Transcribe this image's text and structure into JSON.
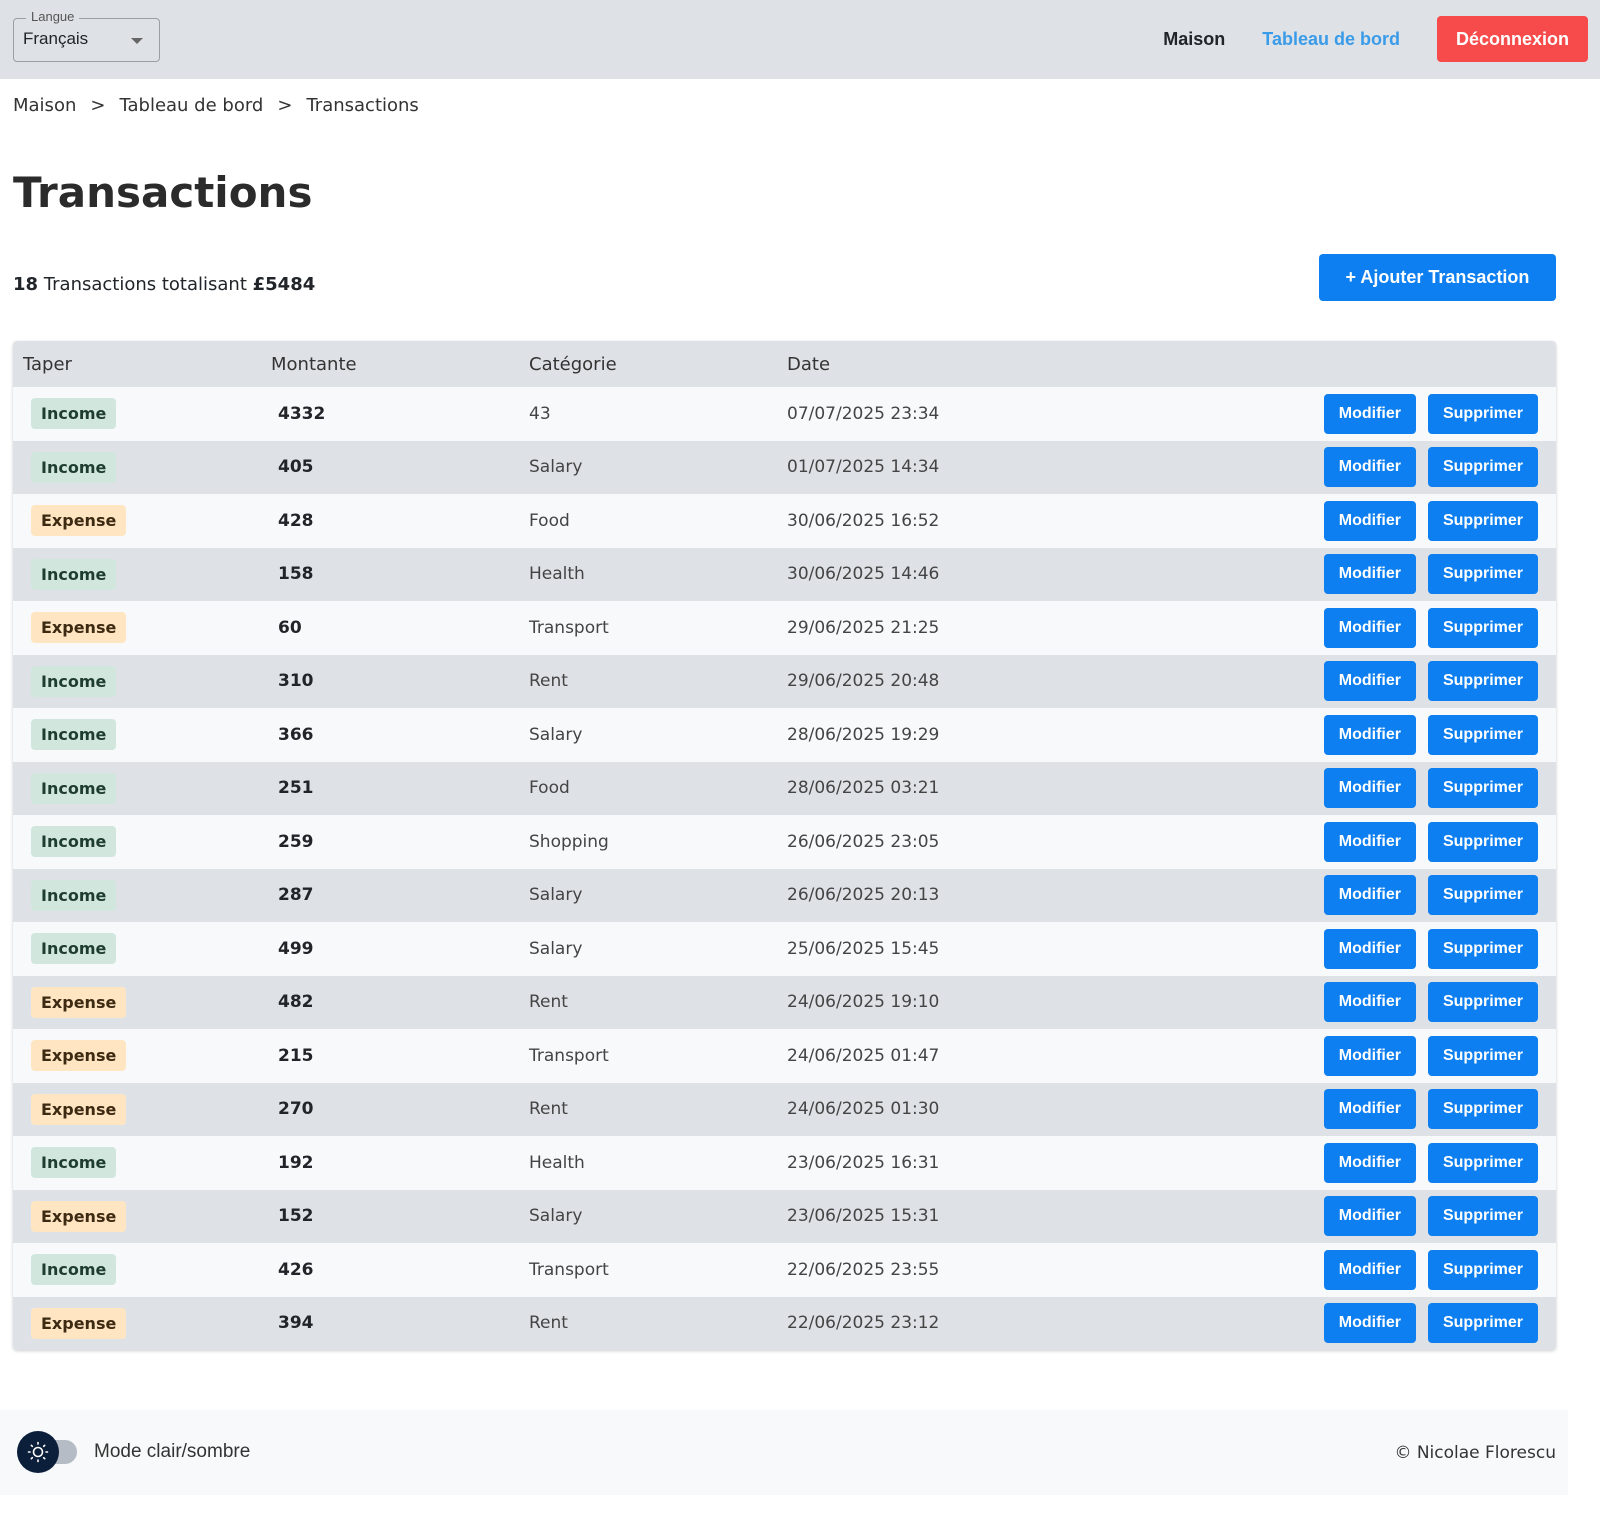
{
  "header": {
    "language_label": "Langue",
    "language_value": "Français",
    "nav_home": "Maison",
    "nav_dashboard": "Tableau de bord",
    "logout": "Déconnexion"
  },
  "breadcrumb": [
    "Maison",
    "Tableau de bord",
    "Transactions"
  ],
  "page_title": "Transactions",
  "summary": {
    "count": "18",
    "text": " Transactions totalisant ",
    "total": "£5484"
  },
  "add_button": "+ Ajouter Transaction",
  "table": {
    "columns": [
      "Taper",
      "Montante",
      "Catégorie",
      "Date"
    ],
    "edit_label": "Modifier",
    "delete_label": "Supprimer",
    "rows": [
      [
        "Income",
        "4332",
        "43",
        "07/07/2025 23:34"
      ],
      [
        "Income",
        "405",
        "Salary",
        "01/07/2025 14:34"
      ],
      [
        "Expense",
        "428",
        "Food",
        "30/06/2025 16:52"
      ],
      [
        "Income",
        "158",
        "Health",
        "30/06/2025 14:46"
      ],
      [
        "Expense",
        "60",
        "Transport",
        "29/06/2025 21:25"
      ],
      [
        "Income",
        "310",
        "Rent",
        "29/06/2025 20:48"
      ],
      [
        "Income",
        "366",
        "Salary",
        "28/06/2025 19:29"
      ],
      [
        "Income",
        "251",
        "Food",
        "28/06/2025 03:21"
      ],
      [
        "Income",
        "259",
        "Shopping",
        "26/06/2025 23:05"
      ],
      [
        "Income",
        "287",
        "Salary",
        "26/06/2025 20:13"
      ],
      [
        "Income",
        "499",
        "Salary",
        "25/06/2025 15:45"
      ],
      [
        "Expense",
        "482",
        "Rent",
        "24/06/2025 19:10"
      ],
      [
        "Expense",
        "215",
        "Transport",
        "24/06/2025 01:47"
      ],
      [
        "Expense",
        "270",
        "Rent",
        "24/06/2025 01:30"
      ],
      [
        "Income",
        "192",
        "Health",
        "23/06/2025 16:31"
      ],
      [
        "Expense",
        "152",
        "Salary",
        "23/06/2025 15:31"
      ],
      [
        "Income",
        "426",
        "Transport",
        "22/06/2025 23:55"
      ],
      [
        "Expense",
        "394",
        "Rent",
        "22/06/2025 23:12"
      ]
    ]
  },
  "footer": {
    "mode_label": "Mode clair/sombre",
    "copyright": "© Nicolae Florescu",
    "theme_icon": "sun-icon"
  },
  "colors": {
    "primary": "#0d7ff0",
    "danger": "#f74a4a",
    "income_bg": "#d1e7dd",
    "expense_bg": "#ffe5c2"
  }
}
